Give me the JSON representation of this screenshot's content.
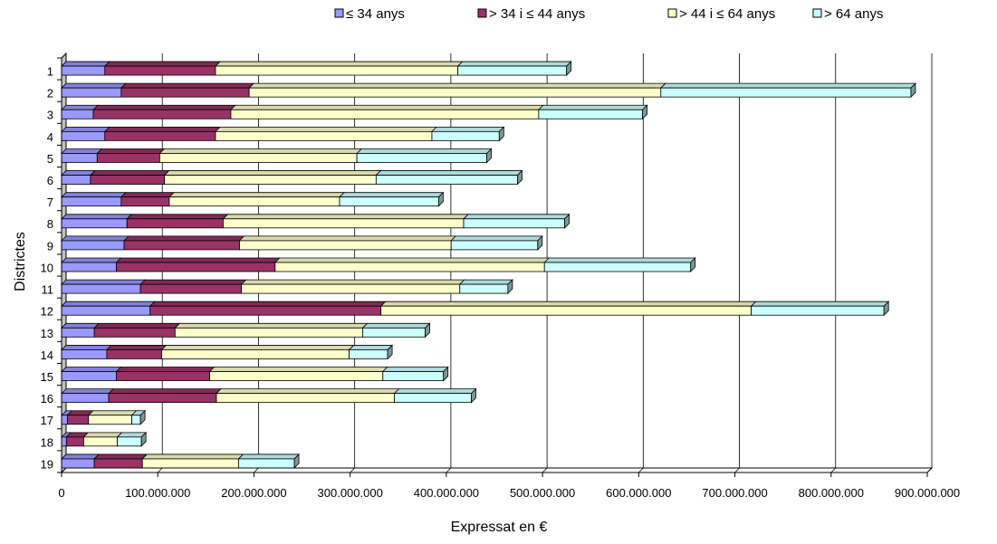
{
  "chart_data": {
    "type": "bar",
    "orientation": "horizontal",
    "stacked": true,
    "style": "3d",
    "categories": [
      "1",
      "2",
      "3",
      "4",
      "5",
      "6",
      "7",
      "8",
      "9",
      "10",
      "11",
      "12",
      "13",
      "14",
      "15",
      "16",
      "17",
      "18",
      "19"
    ],
    "series": [
      {
        "name": "≤ 34 anys",
        "color": "#9999ff",
        "values": [
          45000000,
          62000000,
          33000000,
          45000000,
          37000000,
          30000000,
          62000000,
          68000000,
          65000000,
          57000000,
          82000000,
          92000000,
          34000000,
          47000000,
          57000000,
          49000000,
          6000000,
          5000000,
          34000000
        ]
      },
      {
        "name": "> 34 i ≤ 44 anys",
        "color": "#993366",
        "values": [
          115000000,
          133000000,
          143000000,
          115000000,
          65000000,
          77000000,
          50000000,
          100000000,
          120000000,
          165000000,
          105000000,
          240000000,
          84000000,
          57000000,
          97000000,
          112000000,
          22000000,
          18000000,
          50000000
        ]
      },
      {
        "name": "> 44 i ≤ 64 anys",
        "color": "#ffffcc",
        "values": [
          252000000,
          428000000,
          320000000,
          225000000,
          205000000,
          220000000,
          177000000,
          250000000,
          220000000,
          280000000,
          227000000,
          385000000,
          195000000,
          195000000,
          180000000,
          185000000,
          45000000,
          35000000,
          100000000
        ]
      },
      {
        "name": "> 64 anys",
        "color": "#ccffff",
        "values": [
          113000000,
          260000000,
          108000000,
          70000000,
          135000000,
          147000000,
          103000000,
          105000000,
          90000000,
          152000000,
          50000000,
          138000000,
          65000000,
          40000000,
          63000000,
          80000000,
          9000000,
          25000000,
          58000000
        ]
      }
    ],
    "x_ticks": [
      "0",
      "100.000.000",
      "200.000.000",
      "300.000.000",
      "400.000.000",
      "500.000.000",
      "600.000.000",
      "700.000.000",
      "800.000.000",
      "900.000.000"
    ],
    "xlim": [
      0,
      900000000
    ],
    "xlabel": "Expressat en €",
    "ylabel": "Districtes",
    "title": "",
    "grid": "vertical",
    "legend_position": "top"
  }
}
